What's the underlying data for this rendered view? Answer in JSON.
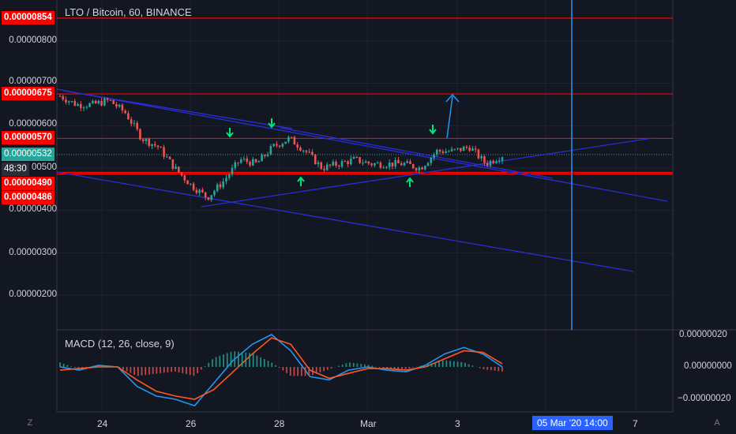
{
  "header": {
    "symbol_title": "LTO / Bitcoin, 60, BINANCE"
  },
  "macd": {
    "title": "MACD (12, 26, close, 9)",
    "axis_labels": [
      "0.00000020",
      "0.00000000",
      "−0.00000020"
    ],
    "axis_values": [
      2e-07,
      0.0,
      -2e-07
    ]
  },
  "price_axis": {
    "labels": [
      "0.00000800",
      "0.00000700",
      "0.00000600",
      "0.00000500",
      "0.00000400",
      "0.00000300",
      "0.00000200"
    ],
    "values": [
      8e-06,
      7e-06,
      6e-06,
      5e-06,
      4e-06,
      3e-06,
      2e-06
    ],
    "label_500_partial": "00500"
  },
  "price_tags": [
    {
      "label": "0.00000854",
      "value": 8.54e-06,
      "style": "red"
    },
    {
      "label": "0.00000675",
      "value": 6.75e-06,
      "style": "red"
    },
    {
      "label": "0.00000570",
      "value": 5.7e-06,
      "style": "red"
    },
    {
      "label": "0.00000532",
      "value": 5.32e-06,
      "style": "green"
    },
    {
      "label": "48:30",
      "value": 5.06e-06,
      "style": "dark"
    },
    {
      "label": "0.00000490",
      "value": 4.9e-06,
      "style": "red"
    },
    {
      "label": "0.00000486",
      "value": 4.86e-06,
      "style": "red"
    }
  ],
  "time_axis": {
    "labels": [
      "24",
      "26",
      "28",
      "Mar",
      "3",
      "7"
    ],
    "cursor_tag": "05 Mar '20   14:00"
  },
  "corner_icons": {
    "left": "Z",
    "right": "A"
  },
  "colors": {
    "background": "#131722",
    "up_candle": "#26a69a",
    "down_candle": "#ef5350",
    "horizontal_levels": "#ff0000",
    "trendlines": "#2a2ed6",
    "cursor_line": "#2196f3",
    "macd_line": "#2196f3",
    "signal_line": "#ff5722",
    "current_price_line": "#26a69a",
    "arrow_marker": "#00e676"
  },
  "chart_data": [
    {
      "type": "candlestick",
      "title": "LTO / Bitcoin, 60, BINANCE",
      "x_ticks": [
        "24",
        "26",
        "28",
        "Mar",
        "3",
        "7"
      ],
      "ylim": [
        1.4e-06,
        8.9e-06
      ],
      "horizontal_levels": [
        8.54e-06,
        6.75e-06,
        5.7e-06,
        4.9e-06,
        4.86e-06
      ],
      "current_price": 5.32e-06,
      "close_path": [
        [
          "23",
          6.7e-06
        ],
        [
          "23.5",
          6.5e-06
        ],
        [
          "24",
          6.5e-06
        ],
        [
          "24.3",
          6.6e-06
        ],
        [
          "24.5",
          6.3e-06
        ],
        [
          "25",
          5.7e-06
        ],
        [
          "25.5",
          5.5e-06
        ],
        [
          "26",
          5e-06
        ],
        [
          "26.3",
          4.6e-06
        ],
        [
          "26.6",
          4.3e-06
        ],
        [
          "26.8",
          4.7e-06
        ],
        [
          "27",
          5.2e-06
        ],
        [
          "27.3",
          5.1e-06
        ],
        [
          "27.6",
          5.5e-06
        ],
        [
          "27.8",
          5.7e-06
        ],
        [
          "28",
          5.4e-06
        ],
        [
          "28.3",
          5e-06
        ],
        [
          "28.6",
          5.1e-06
        ],
        [
          "29",
          5.2e-06
        ],
        [
          "Mar",
          5.1e-06
        ],
        [
          "1.5",
          5.1e-06
        ],
        [
          "2",
          5.1e-06
        ],
        [
          "2.3",
          5e-06
        ],
        [
          "2.6",
          5.4e-06
        ],
        [
          "3",
          5.4e-06
        ],
        [
          "3.3",
          5.5e-06
        ],
        [
          "3.6",
          5.1e-06
        ],
        [
          "3.9",
          5.3e-06
        ]
      ]
    },
    {
      "type": "line",
      "title": "MACD (12, 26, close, 9)",
      "ylim": [
        -2.8e-07,
        2.8e-07
      ],
      "series": [
        {
          "name": "MACD",
          "values": [
            0.0,
            -2e-08,
            1e-08,
            0.0,
            -1.2e-07,
            -1.8e-07,
            -2e-07,
            -2.4e-07,
            -1e-07,
            4e-08,
            1.4e-07,
            2e-07,
            1e-07,
            -6e-08,
            -8e-08,
            -2e-08,
            0.0,
            -2e-08,
            -3e-08,
            1e-08,
            8e-08,
            1.2e-07,
            8e-08,
            0.0
          ]
        },
        {
          "name": "Signal",
          "values": [
            -2e-08,
            -1e-08,
            0.0,
            0.0,
            -8e-08,
            -1.5e-07,
            -1.8e-07,
            -2e-07,
            -1.4e-07,
            -3e-08,
            8e-08,
            1.8e-07,
            1.4e-07,
            -2e-08,
            -7e-08,
            -4e-08,
            -1e-08,
            -1e-08,
            -2e-08,
            0.0,
            5e-08,
            1e-07,
            9e-08,
            2e-08
          ]
        }
      ]
    }
  ]
}
